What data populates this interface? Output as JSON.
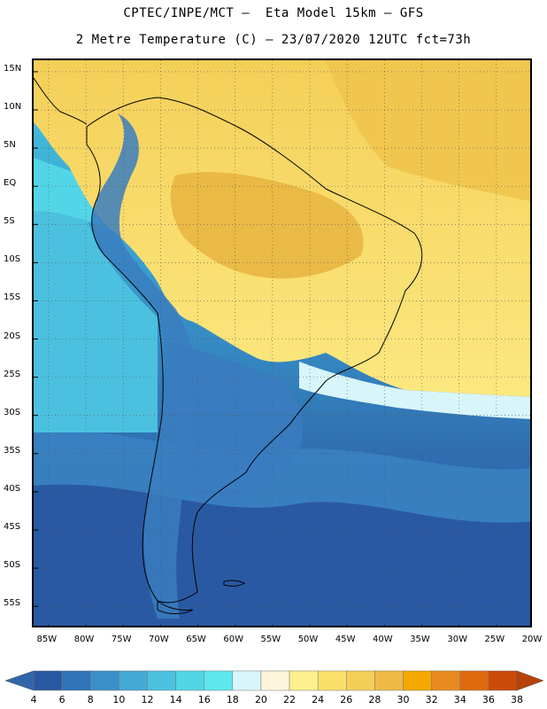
{
  "header": {
    "title_line1": "CPTEC/INPE/MCT –  Eta Model 15km – GFS",
    "title_line2": "2 Metre Temperature (C) – 23/07/2020 12UTC fct=73h"
  },
  "map": {
    "lat_labels": [
      "15N",
      "10N",
      "5N",
      "EQ",
      "5S",
      "10S",
      "15S",
      "20S",
      "25S",
      "30S",
      "35S",
      "40S",
      "45S",
      "50S",
      "55S"
    ],
    "lon_labels": [
      "85W",
      "80W",
      "75W",
      "70W",
      "65W",
      "60W",
      "55W",
      "50W",
      "45W",
      "40W",
      "35W",
      "30W",
      "25W",
      "20W"
    ],
    "lat_range": [
      -58,
      16.5
    ],
    "lon_range": [
      -87,
      -20
    ],
    "gridlines": "dotted",
    "colors": {
      "ocean_cold": "#2b5aa0",
      "ocean_mid": "#3a8cc8",
      "ocean_cool": "#45c6e0",
      "land_warm": "#f0c850",
      "land_hot": "#e8b040",
      "coast": "#000000"
    }
  },
  "colorbar": {
    "ticks": [
      "4",
      "6",
      "8",
      "10",
      "12",
      "14",
      "16",
      "18",
      "20",
      "22",
      "24",
      "26",
      "28",
      "30",
      "32",
      "34",
      "36",
      "38"
    ],
    "colors": [
      "#2a59a3",
      "#2f74b6",
      "#3a8fc8",
      "#43a9d6",
      "#4bc1df",
      "#52d5e6",
      "#5ee8ee",
      "#d8f5fa",
      "#fdf6dc",
      "#fdf08f",
      "#f9e06b",
      "#f4cf58",
      "#edbb45",
      "#f4a800",
      "#e88a1f",
      "#de6a10",
      "#cc4a08"
    ],
    "under_color": "#3265aa",
    "over_color": "#b8420a"
  }
}
